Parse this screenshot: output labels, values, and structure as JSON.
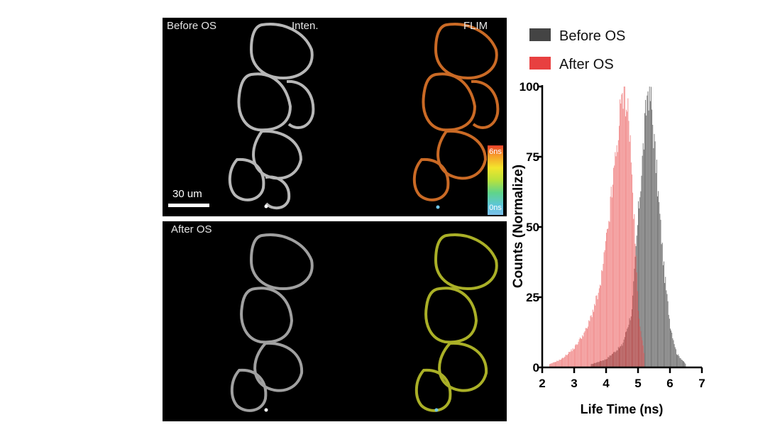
{
  "panels": {
    "top": {
      "label": "Before OS",
      "intensity_label": "Inten.",
      "flim_label": "FLIM",
      "scale_label": "30 um"
    },
    "bottom": {
      "label": "After OS"
    },
    "colorbar": {
      "top_label": "6ns",
      "bottom_label": "0ns"
    }
  },
  "chart_data": {
    "type": "bar",
    "xlabel": "Life Time (ns)",
    "ylabel": "Counts  (Normalize)",
    "xlim": [
      2,
      7
    ],
    "ylim": [
      0,
      100
    ],
    "xticks": [
      2,
      3,
      4,
      5,
      6,
      7
    ],
    "yticks": [
      0,
      25,
      50,
      75,
      100
    ],
    "legend_position": "top",
    "grid": false,
    "series": [
      {
        "name": "Before OS",
        "color": "#444444",
        "peak_ns": 5.3,
        "peak_value": 100,
        "x": [
          3.5,
          4.0,
          4.5,
          4.8,
          5.0,
          5.2,
          5.3,
          5.4,
          5.6,
          5.8,
          6.0,
          6.2,
          6.5
        ],
        "values": [
          1,
          3,
          8,
          20,
          55,
          85,
          100,
          95,
          65,
          35,
          15,
          5,
          1
        ]
      },
      {
        "name": "After OS",
        "color": "#e84040",
        "peak_ns": 4.55,
        "peak_value": 100,
        "x": [
          2.2,
          2.6,
          3.0,
          3.4,
          3.8,
          4.0,
          4.2,
          4.4,
          4.55,
          4.7,
          4.9,
          5.0,
          5.2
        ],
        "values": [
          1,
          3,
          7,
          14,
          28,
          45,
          65,
          87,
          100,
          90,
          45,
          20,
          3
        ]
      }
    ]
  }
}
